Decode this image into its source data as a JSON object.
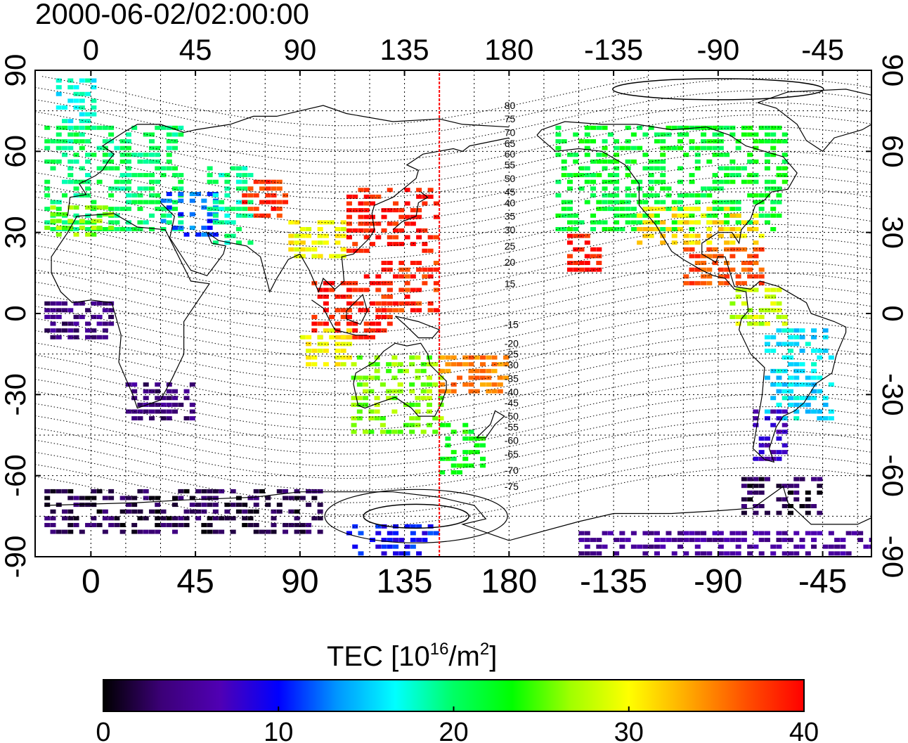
{
  "title": "2000-06-02/02:00:00",
  "map": {
    "lon_ticks": [
      "0",
      "45",
      "90",
      "135",
      "180",
      "-135",
      "-90",
      "-45"
    ],
    "lat_ticks": [
      "90",
      "60",
      "30",
      "0",
      "-30",
      "-60",
      "-90"
    ],
    "lon_range": [
      -24,
      336
    ],
    "lat_range": [
      -90,
      90
    ],
    "grid": true,
    "terminator_lon": 150,
    "magnetic_latitude_labels": [
      {
        "text": "80",
        "lat": 77
      },
      {
        "text": "75",
        "lat": 72
      },
      {
        "text": "70",
        "lat": 67
      },
      {
        "text": "65",
        "lat": 63
      },
      {
        "text": "60",
        "lat": 59
      },
      {
        "text": "55",
        "lat": 55
      },
      {
        "text": "50",
        "lat": 50
      },
      {
        "text": "45",
        "lat": 45
      },
      {
        "text": "40",
        "lat": 41
      },
      {
        "text": "35",
        "lat": 36
      },
      {
        "text": "30",
        "lat": 31
      },
      {
        "text": "25",
        "lat": 25
      },
      {
        "text": "20",
        "lat": 19
      },
      {
        "text": "15",
        "lat": 11
      },
      {
        "text": "-15",
        "lat": -4
      },
      {
        "text": "-20",
        "lat": -11
      },
      {
        "text": "-25",
        "lat": -15
      },
      {
        "text": "-30",
        "lat": -19
      },
      {
        "text": "-35",
        "lat": -24
      },
      {
        "text": "-40",
        "lat": -29
      },
      {
        "text": "-45",
        "lat": -33
      },
      {
        "text": "-50",
        "lat": -38
      },
      {
        "text": "-55",
        "lat": -42
      },
      {
        "text": "-60",
        "lat": -47
      },
      {
        "text": "-65",
        "lat": -52
      },
      {
        "text": "-70",
        "lat": -58
      },
      {
        "text": "-75",
        "lat": -64
      }
    ]
  },
  "colorbar": {
    "label_prefix": "TEC  [10",
    "label_exp1": "16",
    "label_mid": "/m",
    "label_exp2": "2",
    "label_suffix": "]",
    "ticks": [
      "0",
      "10",
      "20",
      "30",
      "40"
    ],
    "min": 0,
    "max": 40,
    "colors": [
      "#000000",
      "#3c0078",
      "#5000b4",
      "#0000ff",
      "#0096ff",
      "#00ffff",
      "#00ff64",
      "#00ff00",
      "#a0ff00",
      "#ffff00",
      "#ffaa00",
      "#ff5000",
      "#ff0000"
    ]
  },
  "colors": {
    "terminator": "#ff0000",
    "frame": "#000000"
  },
  "chart_data": {
    "type": "heatmap",
    "title": "2000-06-02/02:00:00",
    "xlabel": "",
    "ylabel": "",
    "xlim": [
      -24,
      336
    ],
    "ylim": [
      -90,
      90
    ],
    "value_label": "TEC [10^16/m^2]",
    "value_range": [
      0,
      40
    ],
    "regions": [
      {
        "lon": [
          -20,
          40
        ],
        "lat": [
          30,
          70
        ],
        "tec": 20
      },
      {
        "lon": [
          -20,
          10
        ],
        "lat": [
          28,
          40
        ],
        "tec": 26
      },
      {
        "lon": [
          -15,
          5
        ],
        "lat": [
          70,
          86
        ],
        "tec": 17
      },
      {
        "lon": [
          30,
          55
        ],
        "lat": [
          28,
          45
        ],
        "tec": 12
      },
      {
        "lon": [
          50,
          70
        ],
        "lat": [
          25,
          55
        ],
        "tec": 19
      },
      {
        "lon": [
          65,
          85
        ],
        "lat": [
          35,
          50
        ],
        "tec": 38
      },
      {
        "lon": [
          85,
          110
        ],
        "lat": [
          20,
          35
        ],
        "tec": 30
      },
      {
        "lon": [
          110,
          150
        ],
        "lat": [
          22,
          45
        ],
        "tec": 39
      },
      {
        "lon": [
          95,
          130
        ],
        "lat": [
          -10,
          15
        ],
        "tec": 39
      },
      {
        "lon": [
          125,
          150
        ],
        "lat": [
          0,
          20
        ],
        "tec": 38
      },
      {
        "lon": [
          90,
          112
        ],
        "lat": [
          -20,
          -5
        ],
        "tec": 30
      },
      {
        "lon": [
          112,
          150
        ],
        "lat": [
          -45,
          -15
        ],
        "tec": 26
      },
      {
        "lon": [
          150,
          170
        ],
        "lat": [
          -60,
          -40
        ],
        "tec": 23
      },
      {
        "lon": [
          150,
          180
        ],
        "lat": [
          -30,
          -15
        ],
        "tec": 35
      },
      {
        "lon": [
          205,
          220
        ],
        "lat": [
          15,
          28
        ],
        "tec": 39
      },
      {
        "lon": [
          200,
          300
        ],
        "lat": [
          30,
          68
        ],
        "tec": 22
      },
      {
        "lon": [
          235,
          290
        ],
        "lat": [
          25,
          38
        ],
        "tec": 31
      },
      {
        "lon": [
          255,
          290
        ],
        "lat": [
          10,
          25
        ],
        "tec": 37
      },
      {
        "lon": [
          275,
          300
        ],
        "lat": [
          -5,
          10
        ],
        "tec": 28
      },
      {
        "lon": [
          290,
          320
        ],
        "lat": [
          -40,
          -5
        ],
        "tec": 16
      },
      {
        "lon": [
          285,
          300
        ],
        "lat": [
          -55,
          -35
        ],
        "tec": 7
      },
      {
        "lon": [
          -20,
          10
        ],
        "lat": [
          -10,
          5
        ],
        "tec": 4
      },
      {
        "lon": [
          15,
          45
        ],
        "lat": [
          -40,
          -25
        ],
        "tec": 4
      },
      {
        "lon": [
          -20,
          100
        ],
        "lat": [
          -82,
          -65
        ],
        "tec": 2
      },
      {
        "lon": [
          110,
          150
        ],
        "lat": [
          -90,
          -78
        ],
        "tec": 10
      },
      {
        "lon": [
          210,
          336
        ],
        "lat": [
          -90,
          -82
        ],
        "tec": 5
      },
      {
        "lon": [
          280,
          315
        ],
        "lat": [
          -75,
          -62
        ],
        "tec": 2
      }
    ]
  }
}
